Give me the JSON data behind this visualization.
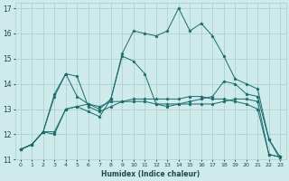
{
  "xlabel": "Humidex (Indice chaleur)",
  "bg_color": "#ceeaea",
  "grid_color": "#aacccc",
  "line_color": "#1a6b6b",
  "xlim": [
    -0.5,
    23.5
  ],
  "ylim": [
    11,
    17.2
  ],
  "xtick_labels": [
    "0",
    "1",
    "2",
    "3",
    "4",
    "5",
    "6",
    "7",
    "8",
    "9",
    "10",
    "11",
    "12",
    "13",
    "14",
    "15",
    "16",
    "17",
    "18",
    "19",
    "20",
    "21",
    "22",
    "23"
  ],
  "ytick_labels": [
    "11",
    "12",
    "13",
    "14",
    "15",
    "16",
    "17"
  ],
  "ytick_vals": [
    11,
    12,
    13,
    14,
    15,
    16,
    17
  ],
  "series": [
    [
      11.4,
      11.6,
      12.1,
      13.6,
      14.4,
      13.5,
      13.2,
      13.0,
      13.4,
      15.1,
      14.9,
      14.4,
      13.2,
      13.1,
      13.2,
      13.3,
      13.4,
      13.5,
      14.1,
      14.0,
      13.6,
      13.5,
      11.8,
      11.1
    ],
    [
      11.4,
      11.6,
      12.1,
      12.1,
      13.0,
      13.1,
      13.2,
      13.1,
      13.3,
      13.3,
      13.4,
      13.4,
      13.4,
      13.4,
      13.4,
      13.5,
      13.5,
      13.4,
      13.4,
      13.3,
      13.2,
      13.0,
      11.2,
      11.1
    ],
    [
      11.4,
      11.6,
      12.1,
      13.5,
      14.4,
      14.3,
      13.1,
      12.9,
      13.1,
      13.3,
      13.3,
      13.3,
      13.2,
      13.2,
      13.2,
      13.2,
      13.2,
      13.2,
      13.3,
      13.4,
      13.4,
      13.3,
      11.2,
      11.1
    ],
    [
      11.4,
      11.6,
      12.1,
      12.0,
      13.0,
      13.1,
      12.9,
      12.7,
      13.4,
      15.2,
      16.1,
      16.0,
      15.9,
      16.1,
      17.0,
      16.1,
      16.4,
      15.9,
      15.1,
      14.2,
      14.0,
      13.8,
      11.8,
      11.0
    ]
  ]
}
